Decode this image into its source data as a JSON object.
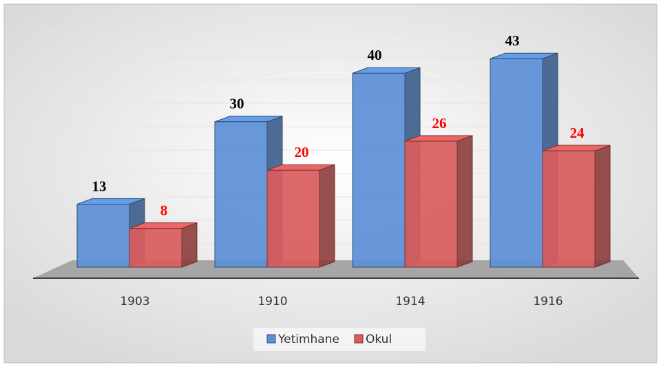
{
  "chart_data": {
    "type": "bar3d",
    "categories": [
      "1903",
      "1910",
      "1914",
      "1916"
    ],
    "series": [
      {
        "name": "Yetimhane",
        "color": "#5b8fd6",
        "values": [
          13,
          30,
          40,
          43
        ]
      },
      {
        "name": "Okul",
        "color": "#d95c5c",
        "values": [
          8,
          20,
          26,
          24
        ]
      }
    ],
    "ylim": [
      0,
      50
    ],
    "legend": "bottom"
  }
}
